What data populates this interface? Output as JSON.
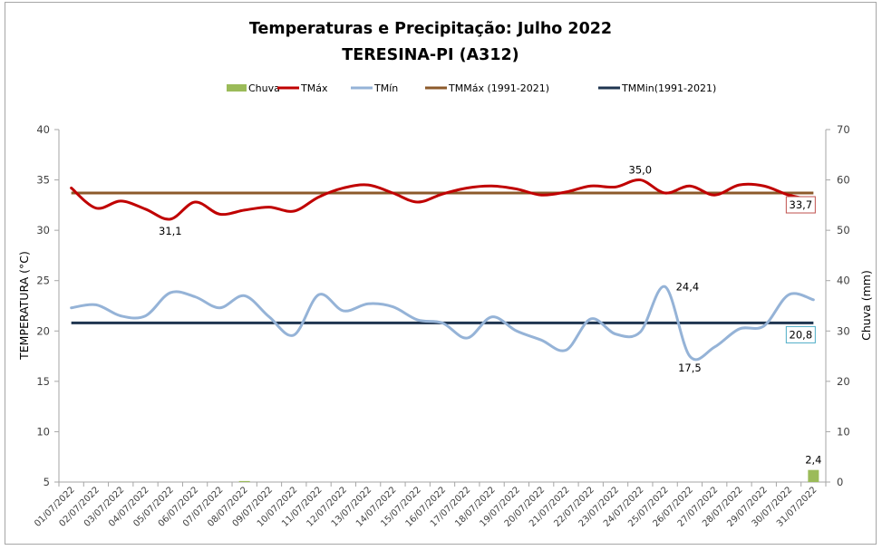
{
  "chart_data": {
    "type": "line",
    "title": "Temperaturas e Precipitação: Julho 2022",
    "subtitle": "TERESINA-PI (A312)",
    "ylabel": "TEMPERATURA (°C)",
    "y2label": "Chuva (mm)",
    "ylim": [
      5,
      40
    ],
    "y2lim": [
      0,
      70
    ],
    "yticks": [
      40,
      35,
      30,
      25,
      20,
      15,
      10,
      5
    ],
    "y2ticks": [
      70,
      60,
      50,
      40,
      30,
      20,
      10,
      0
    ],
    "categories": [
      "01/07/2022",
      "02/07/2022",
      "03/07/2022",
      "04/07/2022",
      "05/07/2022",
      "06/07/2022",
      "07/07/2022",
      "08/07/2022",
      "09/07/2022",
      "10/07/2022",
      "11/07/2022",
      "12/07/2022",
      "13/07/2022",
      "14/07/2022",
      "15/07/2022",
      "16/07/2022",
      "17/07/2022",
      "18/07/2022",
      "19/07/2022",
      "20/07/2022",
      "21/07/2022",
      "22/07/2022",
      "23/07/2022",
      "24/07/2022",
      "25/07/2022",
      "26/07/2022",
      "27/07/2022",
      "28/07/2022",
      "29/07/2022",
      "30/07/2022",
      "31/07/2022"
    ],
    "legend_position": "top",
    "grid": false,
    "series": [
      {
        "name": "Chuva",
        "kind": "bar",
        "axis": "y2",
        "color": "#9BBB59",
        "values": [
          0,
          0,
          0,
          0,
          0,
          0,
          0,
          0.2,
          0,
          0,
          0,
          0,
          0,
          0,
          0,
          0,
          0,
          0,
          0,
          0,
          0,
          0,
          0,
          0,
          0,
          0,
          0,
          0,
          0,
          0,
          2.4
        ]
      },
      {
        "name": "TMáx",
        "kind": "line",
        "axis": "y",
        "color": "#C00000",
        "values": [
          34.2,
          32.2,
          32.9,
          32.1,
          31.1,
          32.8,
          31.6,
          32.0,
          32.3,
          31.9,
          33.3,
          34.2,
          34.5,
          33.7,
          32.8,
          33.6,
          34.2,
          34.4,
          34.1,
          33.5,
          33.8,
          34.4,
          34.3,
          35.0,
          33.7,
          34.4,
          33.5,
          34.5,
          34.4,
          33.5,
          33.0
        ]
      },
      {
        "name": "TMín",
        "kind": "line",
        "axis": "y",
        "color": "#95B3D7",
        "values": [
          22.3,
          22.6,
          21.5,
          21.5,
          23.8,
          23.4,
          22.3,
          23.5,
          21.4,
          19.6,
          23.6,
          22.0,
          22.7,
          22.4,
          21.1,
          20.8,
          19.3,
          21.4,
          20.0,
          19.1,
          18.1,
          21.2,
          19.7,
          19.9,
          24.4,
          17.5,
          18.4,
          20.2,
          20.5,
          23.6,
          23.1
        ]
      },
      {
        "name": "TMMáx (1991-2021)",
        "kind": "line",
        "axis": "y",
        "color": "#8C5A2B",
        "constant": 33.7
      },
      {
        "name": "TMMin(1991-2021)",
        "kind": "line",
        "axis": "y",
        "color": "#1F3550",
        "constant": 20.8
      }
    ],
    "annotations": [
      {
        "text": "31,1",
        "series": "TMáx",
        "index": 4,
        "pos": "below"
      },
      {
        "text": "35,0",
        "series": "TMáx",
        "index": 23,
        "pos": "above"
      },
      {
        "text": "33,7",
        "series": "TMMáx (1991-2021)",
        "index": 30,
        "pos": "below",
        "boxed": true,
        "box_color": "#C0504D"
      },
      {
        "text": "24,4",
        "series": "TMín",
        "index": 24,
        "pos": "right"
      },
      {
        "text": "17,5",
        "series": "TMín",
        "index": 25,
        "pos": "below"
      },
      {
        "text": "20,8",
        "series": "TMMin(1991-2021)",
        "index": 30,
        "pos": "below",
        "boxed": true,
        "box_color": "#4BACC6"
      },
      {
        "text": "2,4",
        "series": "Chuva",
        "index": 30,
        "pos": "above"
      }
    ]
  }
}
